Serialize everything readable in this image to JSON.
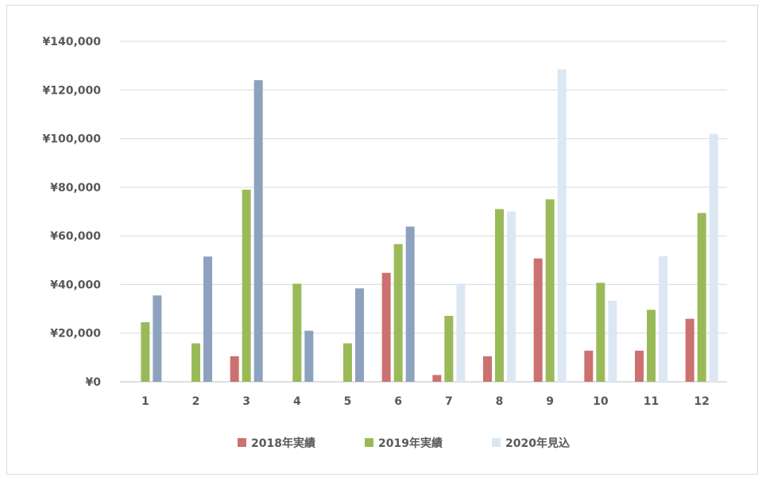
{
  "chart_data": {
    "type": "bar",
    "title": "",
    "xlabel": "",
    "ylabel": "",
    "categories": [
      "1",
      "2",
      "3",
      "4",
      "5",
      "6",
      "7",
      "8",
      "9",
      "10",
      "11",
      "12"
    ],
    "ylim": [
      0,
      140000
    ],
    "yticks": [
      "¥0",
      "¥20,000",
      "¥40,000",
      "¥60,000",
      "¥80,000",
      "¥100,000",
      "¥120,000",
      "¥140,000"
    ],
    "grid": true,
    "legend_position": "bottom",
    "series": [
      {
        "name": "2018年実績",
        "color": "#cd7070",
        "values": [
          0,
          0,
          10500,
          0,
          0,
          44800,
          2800,
          10500,
          50700,
          12800,
          12800,
          25900
        ]
      },
      {
        "name": "2019年実績",
        "color": "#9aba59",
        "values": [
          24500,
          15800,
          79000,
          40300,
          15800,
          56600,
          27100,
          71000,
          75000,
          40700,
          29600,
          69400
        ]
      },
      {
        "name": "2020年見込",
        "color": "#dce7f4",
        "actual_color": "#8da2be",
        "values": [
          35500,
          51500,
          124000,
          21000,
          38400,
          63800,
          40300,
          70000,
          128500,
          33300,
          51600,
          102000
        ]
      }
    ]
  }
}
